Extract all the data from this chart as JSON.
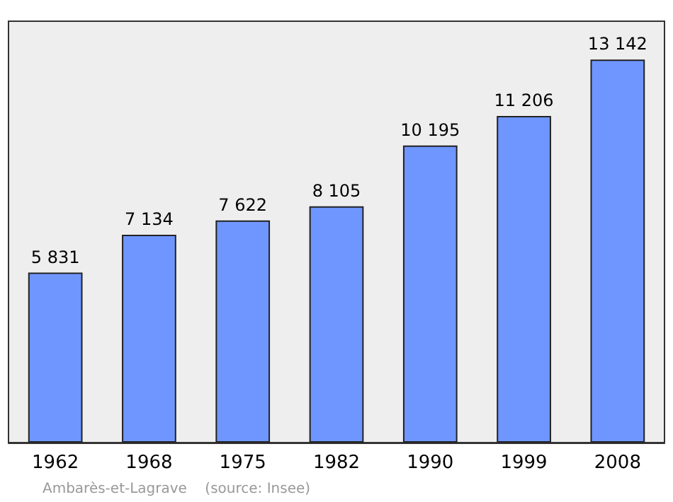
{
  "chart_data": {
    "type": "bar",
    "categories": [
      "1962",
      "1968",
      "1975",
      "1982",
      "1990",
      "1999",
      "2008"
    ],
    "values": [
      5831,
      7134,
      7622,
      8105,
      10195,
      11206,
      13142
    ],
    "value_labels": [
      "5 831",
      "7 134",
      "7 622",
      "8 105",
      "10 195",
      "11 206",
      "13 142"
    ],
    "color": "#6f96ff",
    "annotations": [
      "Ambarès-et-Lagrave    (source: Insee)"
    ]
  }
}
